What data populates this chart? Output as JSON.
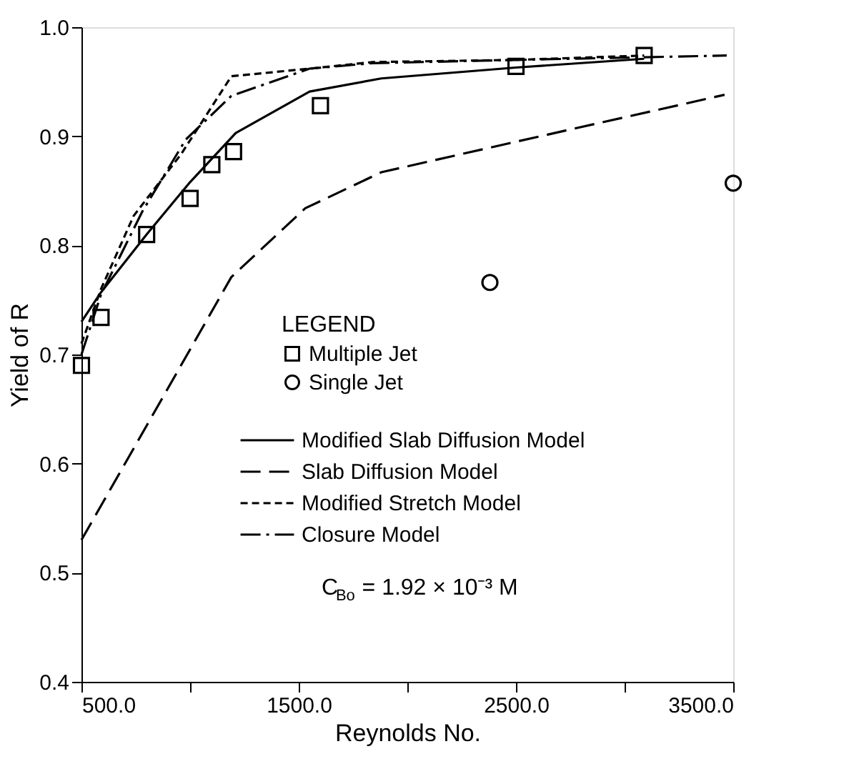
{
  "chart_data": {
    "type": "line",
    "xlabel": "Reynolds No.",
    "ylabel": "Yield of R",
    "legend_title": "LEGEND",
    "legend": "bottom right",
    "xlim": [
      500,
      3500
    ],
    "ylim": [
      0.4,
      1.0
    ],
    "xticks": [
      {
        "value": 500,
        "label": "500.0"
      },
      {
        "value": 1000,
        "label": null
      },
      {
        "value": 1500,
        "label": "1500.0"
      },
      {
        "value": 2000,
        "label": null
      },
      {
        "value": 2500,
        "label": "2500.0"
      },
      {
        "value": 3000,
        "label": null
      },
      {
        "value": 3500,
        "label": "3500.0"
      }
    ],
    "yticks": [
      0.4,
      0.5,
      0.6,
      0.7,
      0.8,
      0.9,
      {
        "value": 1.0,
        "label": "1.0"
      }
    ],
    "grid": false,
    "annotations": [
      "C$_{Bo}$ = 1.92 × 10⁻³ M"
    ],
    "series": [
      {
        "name": "Multiple Jet",
        "type": "scatter",
        "marker": "square",
        "color": "#000000",
        "x": [
          500,
          590,
          800,
          1000,
          1100,
          1200,
          1600,
          2500,
          3090
        ],
        "values": [
          0.69,
          0.734,
          0.81,
          0.843,
          0.874,
          0.886,
          0.928,
          0.964,
          0.974
        ]
      },
      {
        "name": "Single Jet",
        "type": "scatter",
        "marker": "circle",
        "color": "#000000",
        "x": [
          2380,
          3500
        ],
        "values": [
          0.766,
          0.857
        ]
      },
      {
        "name": "Modified Slab Diffusion Model",
        "type": "line",
        "line_style": "solid",
        "color": "#000000",
        "x": [
          500,
          590,
          800,
          1000,
          1210,
          1550,
          1880,
          2500,
          3090
        ],
        "values": [
          0.73,
          0.757,
          0.81,
          0.858,
          0.903,
          0.941,
          0.953,
          0.963,
          0.971
        ]
      },
      {
        "name": "Slab Diffusion Model",
        "type": "line",
        "line_style": "dashed",
        "color": "#000000",
        "x": [
          500,
          1190,
          1530,
          1880,
          2500,
          3460
        ],
        "values": [
          0.53,
          0.771,
          0.834,
          0.867,
          0.895,
          0.938
        ]
      },
      {
        "name": "Modified Stretch Model",
        "type": "line",
        "line_style": "dotted",
        "color": "#000000",
        "x": [
          500,
          590,
          740,
          960,
          1190,
          1550,
          1840,
          2500,
          3090
        ],
        "values": [
          0.71,
          0.76,
          0.827,
          0.884,
          0.955,
          0.962,
          0.968,
          0.97,
          0.974
        ]
      },
      {
        "name": "Closure Model",
        "type": "line",
        "line_style": "dashdot",
        "color": "#000000",
        "x": [
          500,
          590,
          780,
          980,
          1190,
          1550,
          1840,
          2500,
          3470
        ],
        "values": [
          0.7,
          0.755,
          0.831,
          0.897,
          0.937,
          0.962,
          0.967,
          0.97,
          0.974
        ]
      }
    ]
  }
}
